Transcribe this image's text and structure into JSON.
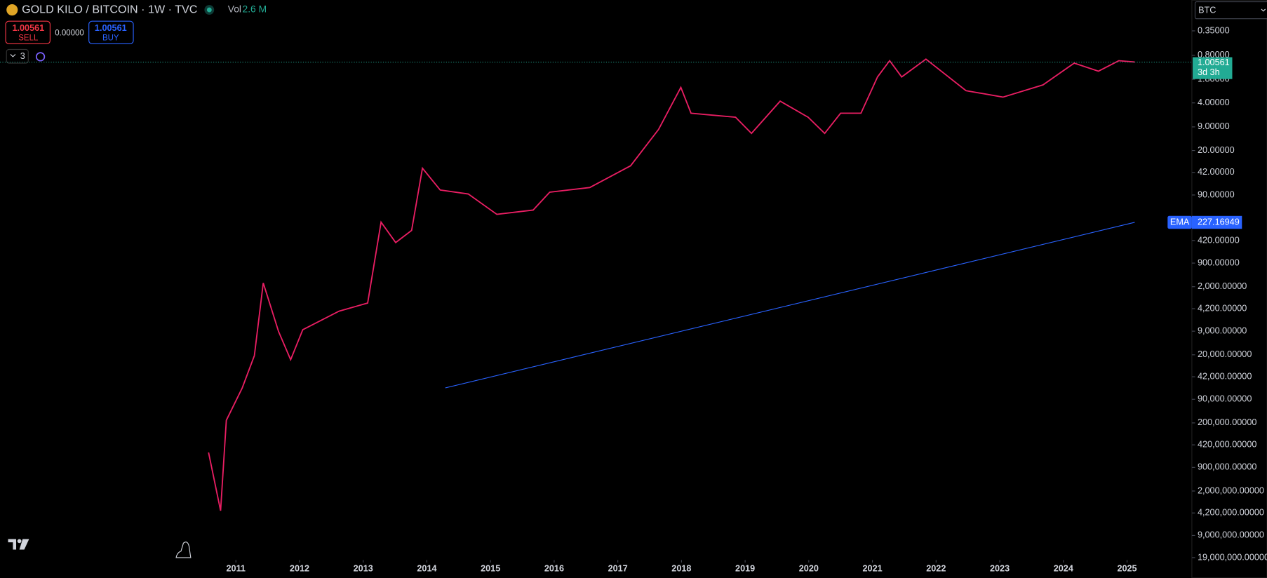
{
  "header": {
    "title": "GOLD KILO / BITCOIN · 1W · TVC",
    "vol_label": "Vol",
    "vol_value": "2.6 M",
    "sell_price": "1.00561",
    "sell_label": "SELL",
    "spread": "0.00000",
    "buy_price": "1.00561",
    "buy_label": "BUY",
    "indicator_count": "3",
    "currency": "BTC",
    "countdown": "3d 3h",
    "ema_label": "EMA"
  },
  "chart_data": {
    "type": "line",
    "log_scale": true,
    "invert": true,
    "xlim": [
      2007.294,
      2026.018
    ],
    "xticks": [
      2011,
      2012,
      2013,
      2014,
      2015,
      2016,
      2017,
      2018,
      2019,
      2020,
      2021,
      2022,
      2023,
      2024,
      2025
    ],
    "ylim": [
      0.124,
      20650000
    ],
    "yticks": [
      {
        "value": 0.35,
        "label": "0.35000"
      },
      {
        "value": 0.8,
        "label": "0.80000"
      },
      {
        "value": 1.8,
        "label": "1.80000"
      },
      {
        "value": 4,
        "label": "4.00000"
      },
      {
        "value": 9,
        "label": "9.00000"
      },
      {
        "value": 20,
        "label": "20.00000"
      },
      {
        "value": 42,
        "label": "42.00000"
      },
      {
        "value": 90,
        "label": "90.00000"
      },
      {
        "value": 420,
        "label": "420.00000"
      },
      {
        "value": 900,
        "label": "900.00000"
      },
      {
        "value": 2000,
        "label": "2,000.00000"
      },
      {
        "value": 4200,
        "label": "4,200.00000"
      },
      {
        "value": 9000,
        "label": "9,000.00000"
      },
      {
        "value": 20000,
        "label": "20,000.00000"
      },
      {
        "value": 42000,
        "label": "42,000.00000"
      },
      {
        "value": 90000,
        "label": "90,000.00000"
      },
      {
        "value": 200000,
        "label": "200,000.00000"
      },
      {
        "value": 420000,
        "label": "420,000.00000"
      },
      {
        "value": 900000,
        "label": "900,000.00000"
      },
      {
        "value": 2000000,
        "label": "2,000,000.00000"
      },
      {
        "value": 4200000,
        "label": "4,200,000.00000"
      },
      {
        "value": 9000000,
        "label": "9,000,000.00000"
      },
      {
        "value": 19000000,
        "label": "19,000,000.00000"
      }
    ],
    "series": [
      {
        "name": "GOLD KILO / BITCOIN",
        "color": "#e91e63",
        "x": [
          2010.57,
          2010.76,
          2010.85,
          2011.1,
          2011.29,
          2011.43,
          2011.67,
          2011.86,
          2012.05,
          2012.62,
          2013.07,
          2013.28,
          2013.51,
          2013.76,
          2013.93,
          2014.21,
          2014.65,
          2015.1,
          2015.67,
          2015.93,
          2016.56,
          2017.2,
          2017.64,
          2017.99,
          2018.15,
          2018.85,
          2019.1,
          2019.55,
          2019.99,
          2020.25,
          2020.5,
          2020.82,
          2021.08,
          2021.27,
          2021.46,
          2021.84,
          2022.47,
          2023.05,
          2023.68,
          2024.17,
          2024.55,
          2024.87,
          2025.12
        ],
        "values": [
          545000,
          3890000,
          183000,
          61200,
          20600,
          1760,
          9060,
          23600,
          8570,
          4570,
          3480,
          226,
          449,
          298,
          36.4,
          76,
          87,
          173,
          150,
          82,
          70,
          33.5,
          9.8,
          2.37,
          5.67,
          6.5,
          11.2,
          3.77,
          6.5,
          11.2,
          5.67,
          5.67,
          1.66,
          0.96,
          1.66,
          0.91,
          2.64,
          3.29,
          2.18,
          1.04,
          1.37,
          0.96,
          1.00561
        ]
      },
      {
        "name": "EMA",
        "color": "#2962ff",
        "x": [
          2014.29,
          2025.12
        ],
        "values": [
          61200,
          227.16949
        ]
      }
    ]
  }
}
